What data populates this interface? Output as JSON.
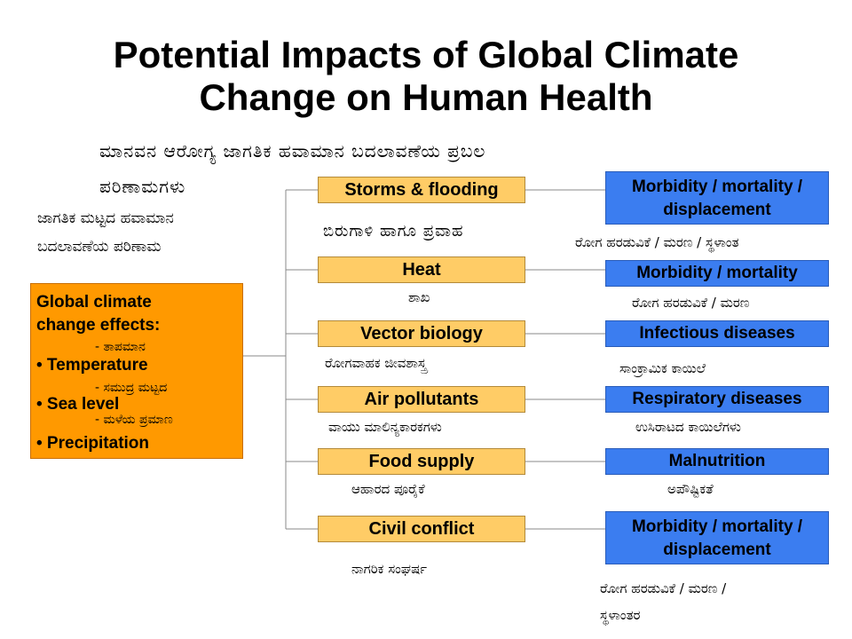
{
  "title": {
    "line1": "Potential Impacts of Global Climate",
    "line2": "Change on Human Health"
  },
  "subtitle_kannada": {
    "line1": "ಮಾನವನ ಆರೋಗ್ಯ ಜಾಗತಿಕ ಹವಾಮಾನ ಬದಲಾವಣೆಯ ಪ್ರಬಲ",
    "line2": "ಪರಿಣಾಮಗಳು"
  },
  "left_caption_kannada": {
    "line1": "ಜಾಗತಿಕ ಮಟ್ಟದ ಹವಾಮಾನ",
    "line2": "ಬದಲಾವಣೆಯ ಪರಿಣಾಮ"
  },
  "effects_box": {
    "title_line1": "Global climate",
    "title_line2": "change effects:",
    "items": [
      {
        "label": "• Temperature",
        "kannada": "- ತಾಪಮಾನ"
      },
      {
        "label": "• Sea level",
        "kannada": "- ಸಮುದ್ರ ಮಟ್ಟದ"
      },
      {
        "label": "• Precipitation",
        "kannada": "- ಮಳೆಯ ಪ್ರಮಾಣ"
      }
    ]
  },
  "pathways": [
    {
      "factor": "Storms & flooding",
      "factor_kannada": "ಬಿರುಗಾಳಿ ಹಾಗೂ ಪ್ರವಾಹ",
      "outcome_line1": "Morbidity / mortality /",
      "outcome_line2": "displacement",
      "outcome_kannada": "ರೋಗ ಹರಡುವಿಕೆ / ಮರಣ / ಸ್ಥಳಾಂತ"
    },
    {
      "factor": "Heat",
      "factor_kannada": "ಶಾಖ",
      "outcome_line1": "Morbidity / mortality",
      "outcome_line2": "",
      "outcome_kannada": "ರೋಗ ಹರಡುವಿಕೆ / ಮರಣ"
    },
    {
      "factor": "Vector biology",
      "factor_kannada": "ರೋಗವಾಹಕ ಜೀವಶಾಸ್ತ್ರ",
      "outcome_line1": "Infectious diseases",
      "outcome_line2": "",
      "outcome_kannada": "ಸಾಂಕ್ರಾಮಿಕ ಕಾಯಿಲೆ"
    },
    {
      "factor": "Air pollutants",
      "factor_kannada": "ವಾಯು ಮಾಲಿನ್ಯಕಾರಕಗಳು",
      "outcome_line1": "Respiratory diseases",
      "outcome_line2": "",
      "outcome_kannada": "ಉಸಿರಾಟದ ಕಾಯಿಲೆಗಳು"
    },
    {
      "factor": "Food supply",
      "factor_kannada": "ಆಹಾರದ ಪೂರೈಕೆ",
      "outcome_line1": "Malnutrition",
      "outcome_line2": "",
      "outcome_kannada": "ಅಪೌಷ್ಟಿಕತೆ"
    },
    {
      "factor": "Civil conflict",
      "factor_kannada": "ನಾಗರಿಕ ಸಂಘರ್ಷ",
      "outcome_line1": "Morbidity / mortality /",
      "outcome_line2": "displacement",
      "outcome_kannada": "ರೋಗ ಹರಡುವಿಕೆ / ಮರಣ /",
      "outcome_kannada_line2": "ಸ್ಥಳಾಂತರ"
    }
  ],
  "colors": {
    "effects_box": "#ff9900",
    "factor_box": "#ffcc66",
    "outcome_box": "#3b7df0",
    "connector": "#888888"
  }
}
